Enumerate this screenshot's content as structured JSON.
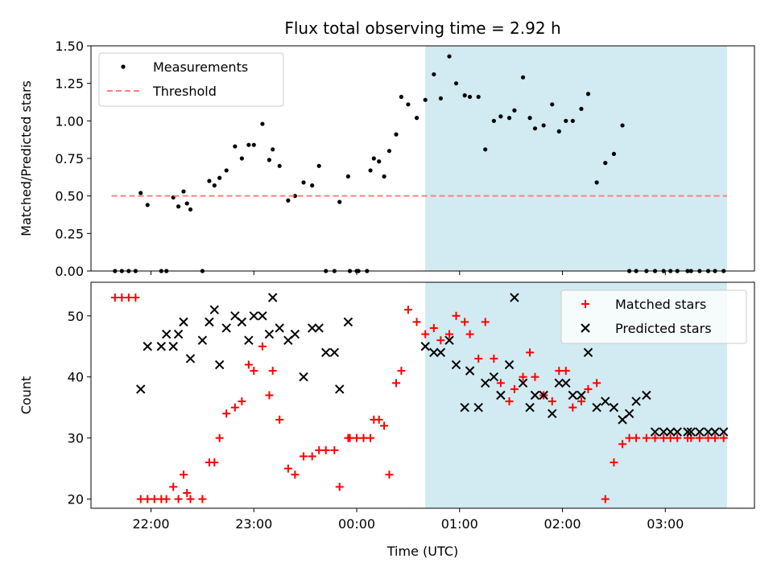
{
  "chart_data": {
    "title": "Flux total observing time = 2.92 h",
    "xlabel": "Time (UTC)",
    "x_unit": "hours UTC",
    "xlim": [
      "21:25",
      "03:52"
    ],
    "x_ticks": [
      {
        "value": "22:00",
        "label": "22:00"
      },
      {
        "value": "23:00",
        "label": "23:00"
      },
      {
        "value": "00:00",
        "label": "00:00"
      },
      {
        "value": "01:00",
        "label": "01:00"
      },
      {
        "value": "02:00",
        "label": "02:00"
      },
      {
        "value": "03:00",
        "label": "03:00"
      }
    ],
    "highlight_band": {
      "x_start": "00:40",
      "x_end": "03:36",
      "color": "#add8e6"
    },
    "panels": [
      {
        "name": "ratio",
        "type": "scatter",
        "ylabel": "Matched/Predicted stars",
        "ylim": [
          0,
          1.5
        ],
        "y_ticks": [
          0.0,
          0.25,
          0.5,
          0.75,
          1.0,
          1.25,
          1.5
        ],
        "y_tick_labels": [
          "0.00",
          "0.25",
          "0.50",
          "0.75",
          "1.00",
          "1.25",
          "1.50"
        ],
        "legend": "top-left",
        "series": [
          {
            "name": "Measurements",
            "marker": "dot",
            "color": "#000000",
            "x": [
              "21:39",
              "21:43",
              "21:47",
              "21:51",
              "21:54",
              "21:58",
              "22:06",
              "22:09",
              "22:13",
              "22:16",
              "22:19",
              "22:21",
              "22:23",
              "22:30",
              "22:34",
              "22:37",
              "22:40",
              "22:44",
              "22:49",
              "22:53",
              "22:57",
              "23:00",
              "23:05",
              "23:09",
              "23:11",
              "23:15",
              "23:20",
              "23:24",
              "23:29",
              "23:34",
              "23:38",
              "23:42",
              "23:47",
              "23:50",
              "23:55",
              "23:56",
              "00:00",
              "00:01",
              "00:06",
              "00:08",
              "00:10",
              "00:13",
              "00:16",
              "00:19",
              "00:23",
              "00:26",
              "00:30",
              "00:35",
              "00:40",
              "00:45",
              "00:49",
              "00:54",
              "00:58",
              "01:03",
              "01:06",
              "01:11",
              "01:15",
              "01:20",
              "01:24",
              "01:29",
              "01:32",
              "01:37",
              "01:41",
              "01:44",
              "01:49",
              "01:54",
              "01:58",
              "02:02",
              "02:06",
              "02:11",
              "02:15",
              "02:20",
              "02:25",
              "02:30",
              "02:35",
              "02:39",
              "02:43",
              "02:49",
              "02:54",
              "02:59",
              "03:03",
              "03:07",
              "03:13",
              "03:15",
              "03:20",
              "03:25",
              "03:29",
              "03:34"
            ],
            "y": [
              0.0,
              0.0,
              0.0,
              0.0,
              0.52,
              0.44,
              0.0,
              0.0,
              0.49,
              0.43,
              0.53,
              0.45,
              0.41,
              0.0,
              0.6,
              0.57,
              0.62,
              0.67,
              0.83,
              0.75,
              0.84,
              0.84,
              0.98,
              0.74,
              0.81,
              0.7,
              0.47,
              0.5,
              0.59,
              0.57,
              0.7,
              0.0,
              0.0,
              0.46,
              0.63,
              0.0,
              0.0,
              0.0,
              0.0,
              0.67,
              0.75,
              0.73,
              0.63,
              0.8,
              0.91,
              1.16,
              1.11,
              1.02,
              1.14,
              1.31,
              1.15,
              1.43,
              1.25,
              1.17,
              1.16,
              1.16,
              0.81,
              1.0,
              1.03,
              1.02,
              1.07,
              1.29,
              1.02,
              0.95,
              0.97,
              1.11,
              0.93,
              1.0,
              1.0,
              1.08,
              1.18,
              0.59,
              0.72,
              0.78,
              0.97,
              0.0,
              0.0,
              0.0,
              0.0,
              0.0,
              0.0,
              0.0,
              0.0,
              0.0,
              0.0,
              0.0,
              0.0,
              0.0
            ]
          },
          {
            "name": "Threshold",
            "type": "line",
            "style": "dashed",
            "color": "#ff7f7f",
            "x": [
              "21:37",
              "03:36"
            ],
            "y": [
              0.5,
              0.5
            ]
          }
        ]
      },
      {
        "name": "count",
        "type": "scatter",
        "ylabel": "Count",
        "ylim": [
          18.5,
          55.5
        ],
        "y_ticks": [
          20,
          30,
          40,
          50
        ],
        "y_tick_labels": [
          "20",
          "30",
          "40",
          "50"
        ],
        "legend": "top-right",
        "series": [
          {
            "name": "Matched stars",
            "marker": "plus",
            "color": "#ff0000",
            "x": [
              "21:39",
              "21:43",
              "21:47",
              "21:51",
              "21:54",
              "21:58",
              "22:02",
              "22:06",
              "22:09",
              "22:13",
              "22:16",
              "22:19",
              "22:21",
              "22:23",
              "22:30",
              "22:34",
              "22:37",
              "22:40",
              "22:44",
              "22:49",
              "22:53",
              "22:57",
              "23:00",
              "23:05",
              "23:09",
              "23:11",
              "23:15",
              "23:20",
              "23:24",
              "23:29",
              "23:34",
              "23:38",
              "23:42",
              "23:47",
              "23:50",
              "23:55",
              "23:56",
              "00:00",
              "00:04",
              "00:08",
              "00:10",
              "00:13",
              "00:16",
              "00:19",
              "00:23",
              "00:26",
              "00:30",
              "00:35",
              "00:40",
              "00:45",
              "00:49",
              "00:54",
              "00:58",
              "01:03",
              "01:06",
              "01:11",
              "01:15",
              "01:20",
              "01:24",
              "01:29",
              "01:32",
              "01:37",
              "01:41",
              "01:44",
              "01:49",
              "01:54",
              "01:58",
              "02:02",
              "02:06",
              "02:11",
              "02:15",
              "02:20",
              "02:25",
              "02:30",
              "02:35",
              "02:39",
              "02:43",
              "02:49",
              "02:54",
              "02:59",
              "03:03",
              "03:07",
              "03:13",
              "03:15",
              "03:20",
              "03:25",
              "03:29",
              "03:34"
            ],
            "y": [
              53,
              53,
              53,
              53,
              20,
              20,
              20,
              20,
              20,
              22,
              20,
              24,
              21,
              20,
              20,
              26,
              26,
              30,
              34,
              35,
              36,
              42,
              41,
              45,
              37,
              41,
              33,
              25,
              24,
              27,
              27,
              28,
              28,
              28,
              22,
              30,
              30,
              30,
              30,
              30,
              33,
              33,
              32,
              24,
              39,
              41,
              51,
              49,
              47,
              48,
              46,
              47,
              50,
              49,
              47,
              43,
              49,
              43,
              39,
              36,
              38,
              40,
              44,
              40,
              37,
              36,
              41,
              41,
              35,
              36,
              38,
              39,
              20,
              26,
              29,
              30,
              30,
              30,
              30,
              30,
              30,
              30,
              30,
              30,
              30,
              30,
              30,
              30
            ]
          },
          {
            "name": "Predicted stars",
            "marker": "x",
            "color": "#000000",
            "x": [
              "21:54",
              "21:58",
              "22:06",
              "22:09",
              "22:13",
              "22:16",
              "22:19",
              "22:23",
              "22:30",
              "22:34",
              "22:37",
              "22:40",
              "22:44",
              "22:49",
              "22:53",
              "22:57",
              "23:00",
              "23:05",
              "23:09",
              "23:11",
              "23:15",
              "23:20",
              "23:24",
              "23:29",
              "23:34",
              "23:38",
              "23:42",
              "23:47",
              "23:50",
              "23:55",
              "00:40",
              "00:45",
              "00:49",
              "00:54",
              "00:58",
              "01:03",
              "01:06",
              "01:11",
              "01:15",
              "01:20",
              "01:24",
              "01:29",
              "01:32",
              "01:37",
              "01:41",
              "01:44",
              "01:49",
              "01:54",
              "01:58",
              "02:02",
              "02:06",
              "02:11",
              "02:15",
              "02:20",
              "02:25",
              "02:30",
              "02:35",
              "02:39",
              "02:43",
              "02:49",
              "02:54",
              "02:59",
              "03:03",
              "03:07",
              "03:13",
              "03:15",
              "03:20",
              "03:25",
              "03:29",
              "03:34"
            ],
            "y": [
              38,
              45,
              45,
              47,
              45,
              47,
              49,
              43,
              46,
              49,
              51,
              42,
              48,
              50,
              49,
              46,
              50,
              50,
              47,
              53,
              48,
              46,
              47,
              40,
              48,
              48,
              44,
              44,
              38,
              49,
              45,
              44,
              44,
              46,
              42,
              35,
              41,
              35,
              39,
              40,
              37,
              42,
              53,
              39,
              35,
              37,
              37,
              34,
              39,
              39,
              37,
              37,
              44,
              35,
              36,
              35,
              33,
              34,
              36,
              37,
              31,
              31,
              31,
              31,
              31,
              31,
              31,
              31,
              31,
              31
            ]
          }
        ]
      }
    ]
  }
}
